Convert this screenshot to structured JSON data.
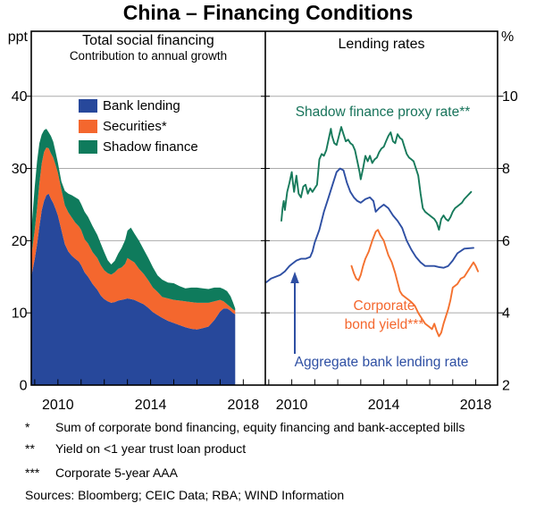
{
  "title": "China – Financing Conditions",
  "footnotes": {
    "items": [
      {
        "marker": "*",
        "text": "Sum of corporate bond financing, equity financing and bank-accepted bills"
      },
      {
        "marker": "**",
        "text": "Yield on <1 year trust loan product"
      },
      {
        "marker": "***",
        "text": "Corporate 5-year AAA"
      }
    ],
    "sources": "Sources: Bloomberg; CEIC Data; RBA; WIND Information"
  },
  "annotations": {
    "shadow_label": "Shadow finance proxy rate**",
    "corporate_label_line1": "Corporate",
    "corporate_label_line2": "bond yield***",
    "aggregate_label": "Aggregate bank lending rate"
  },
  "colors": {
    "bank_lending": "#27489B",
    "securities": "#F4672E",
    "shadow_finance": "#0F7B5C",
    "blue_line": "#2E4FA3",
    "orange_line": "#F4712F",
    "green_line": "#177A5B",
    "gridline": "#ABABAB"
  },
  "chart_data": [
    {
      "type": "area",
      "stacked": true,
      "panel": "left",
      "title": "Total social financing",
      "subtitle": "Contribution to annual growth",
      "unit": "ppt",
      "ylim": [
        0,
        49
      ],
      "yticks": [
        0,
        10,
        20,
        30,
        40
      ],
      "xticks": [
        2010,
        2014,
        2018
      ],
      "x": [
        2008.85,
        2009.0,
        2009.1,
        2009.2,
        2009.3,
        2009.4,
        2009.5,
        2009.6,
        2009.7,
        2009.8,
        2009.9,
        2010.0,
        2010.15,
        2010.3,
        2010.45,
        2010.6,
        2010.75,
        2010.9,
        2011.0,
        2011.15,
        2011.3,
        2011.5,
        2011.7,
        2011.85,
        2012.0,
        2012.15,
        2012.3,
        2012.45,
        2012.6,
        2012.75,
        2012.9,
        2013.0,
        2013.15,
        2013.3,
        2013.5,
        2013.7,
        2013.9,
        2014.1,
        2014.3,
        2014.5,
        2014.75,
        2015.0,
        2015.25,
        2015.5,
        2015.75,
        2016.0,
        2016.25,
        2016.5,
        2016.75,
        2017.0,
        2017.15,
        2017.3,
        2017.45,
        2017.55,
        2017.65
      ],
      "series": [
        {
          "name": "Bank lending",
          "color": "#27489B",
          "values": [
            15.0,
            17.5,
            19.5,
            22.0,
            24.2,
            25.5,
            26.3,
            26.5,
            25.8,
            25.2,
            24.4,
            23.5,
            21.5,
            19.5,
            18.5,
            17.9,
            17.5,
            17.1,
            16.6,
            15.6,
            15.0,
            14.0,
            13.2,
            12.4,
            11.9,
            11.6,
            11.4,
            11.5,
            11.7,
            11.8,
            11.9,
            12.0,
            11.9,
            11.8,
            11.5,
            11.2,
            10.7,
            10.1,
            9.7,
            9.3,
            8.9,
            8.6,
            8.3,
            8.0,
            7.8,
            7.7,
            7.9,
            8.1,
            9.0,
            10.2,
            10.6,
            10.6,
            10.3,
            10.0,
            9.8
          ]
        },
        {
          "name": "Securities*",
          "color": "#F4672E",
          "values": [
            2.8,
            4.0,
            5.0,
            6.0,
            6.5,
            6.8,
            6.6,
            6.3,
            6.3,
            6.3,
            6.1,
            5.9,
            5.6,
            5.4,
            5.4,
            5.3,
            5.0,
            4.9,
            4.9,
            4.6,
            4.6,
            4.4,
            4.4,
            4.2,
            4.0,
            3.9,
            3.9,
            4.1,
            4.4,
            4.5,
            4.9,
            5.6,
            5.4,
            5.2,
            4.6,
            4.2,
            3.8,
            3.4,
            3.2,
            2.9,
            3.1,
            3.2,
            3.4,
            3.6,
            3.7,
            3.7,
            3.5,
            3.3,
            2.6,
            1.6,
            1.0,
            0.6,
            0.5,
            0.5,
            0.5
          ]
        },
        {
          "name": "Shadow finance",
          "color": "#0F7B5C",
          "values": [
            3.5,
            6.0,
            6.5,
            5.5,
            4.0,
            3.0,
            2.6,
            2.2,
            2.4,
            2.2,
            1.8,
            1.4,
            1.1,
            2.0,
            2.6,
            3.1,
            3.5,
            3.7,
            3.6,
            3.8,
            3.7,
            3.6,
            3.2,
            3.0,
            2.5,
            1.8,
            1.4,
            1.6,
            2.1,
            2.7,
            3.3,
            3.8,
            4.5,
            4.0,
            3.9,
            3.4,
            3.1,
            2.8,
            2.3,
            2.4,
            2.2,
            2.3,
            2.0,
            1.8,
            2.0,
            2.1,
            2.0,
            1.9,
            1.9,
            1.7,
            1.7,
            1.8,
            1.5,
            1.0,
            0.3
          ]
        }
      ]
    },
    {
      "type": "line",
      "panel": "right",
      "title": "Lending rates",
      "unit": "%",
      "ylim": [
        2,
        11.8
      ],
      "yticks": [
        2,
        4,
        6,
        8,
        10
      ],
      "xticks": [
        2010,
        2014,
        2018
      ],
      "series": [
        {
          "name": "Shadow finance proxy rate**",
          "color": "#177A5B",
          "x": [
            2009.55,
            2009.6,
            2009.65,
            2009.7,
            2009.8,
            2009.9,
            2010.0,
            2010.05,
            2010.1,
            2010.2,
            2010.3,
            2010.4,
            2010.5,
            2010.6,
            2010.7,
            2010.8,
            2010.9,
            2011.0,
            2011.1,
            2011.2,
            2011.3,
            2011.4,
            2011.5,
            2011.6,
            2011.7,
            2011.75,
            2011.85,
            2011.95,
            2012.05,
            2012.15,
            2012.25,
            2012.35,
            2012.45,
            2012.55,
            2012.65,
            2012.75,
            2012.85,
            2012.95,
            2013.0,
            2013.1,
            2013.2,
            2013.3,
            2013.4,
            2013.5,
            2013.6,
            2013.7,
            2013.8,
            2013.9,
            2014.0,
            2014.1,
            2014.2,
            2014.3,
            2014.4,
            2014.5,
            2014.6,
            2014.7,
            2014.8,
            2014.9,
            2015.0,
            2015.1,
            2015.2,
            2015.3,
            2015.4,
            2015.5,
            2015.6,
            2015.7,
            2015.8,
            2015.9,
            2016.0,
            2016.1,
            2016.2,
            2016.3,
            2016.4,
            2016.5,
            2016.6,
            2016.7,
            2016.8,
            2016.9,
            2017.0,
            2017.1,
            2017.2,
            2017.3,
            2017.4,
            2017.5,
            2017.65,
            2017.8
          ],
          "y": [
            6.55,
            6.9,
            7.1,
            6.85,
            7.35,
            7.6,
            7.9,
            7.6,
            7.35,
            7.8,
            7.3,
            7.2,
            7.5,
            7.55,
            7.3,
            7.45,
            7.35,
            7.45,
            7.55,
            8.25,
            8.4,
            8.35,
            8.5,
            8.8,
            9.1,
            8.9,
            8.7,
            8.65,
            8.9,
            9.15,
            8.95,
            8.75,
            8.8,
            8.7,
            8.65,
            8.5,
            8.2,
            7.9,
            7.7,
            8.0,
            8.35,
            8.2,
            8.35,
            8.15,
            8.25,
            8.3,
            8.45,
            8.55,
            8.6,
            8.75,
            8.9,
            9.0,
            8.75,
            8.7,
            8.95,
            8.85,
            8.8,
            8.6,
            8.4,
            8.3,
            8.25,
            8.2,
            8.0,
            7.8,
            7.3,
            6.9,
            6.8,
            6.75,
            6.7,
            6.65,
            6.6,
            6.5,
            6.3,
            6.6,
            6.7,
            6.6,
            6.55,
            6.65,
            6.8,
            6.9,
            6.95,
            7.0,
            7.05,
            7.15,
            7.25,
            7.35
          ]
        },
        {
          "name": "Corporate bond yield***",
          "color": "#F4712F",
          "x": [
            2012.6,
            2012.7,
            2012.8,
            2012.9,
            2013.0,
            2013.1,
            2013.2,
            2013.35,
            2013.5,
            2013.65,
            2013.75,
            2013.85,
            2014.0,
            2014.1,
            2014.2,
            2014.35,
            2014.5,
            2014.6,
            2014.7,
            2014.8,
            2014.9,
            2015.0,
            2015.1,
            2015.2,
            2015.35,
            2015.5,
            2015.65,
            2015.8,
            2015.9,
            2016.0,
            2016.1,
            2016.2,
            2016.3,
            2016.4,
            2016.5,
            2016.6,
            2016.7,
            2016.8,
            2016.9,
            2017.0,
            2017.1,
            2017.2,
            2017.35,
            2017.5,
            2017.7,
            2017.9,
            2018.0,
            2018.1
          ],
          "y": [
            5.3,
            5.1,
            4.95,
            4.9,
            5.05,
            5.3,
            5.5,
            5.7,
            6.0,
            6.25,
            6.3,
            6.15,
            6.0,
            5.8,
            5.6,
            5.4,
            5.1,
            4.85,
            4.6,
            4.5,
            4.45,
            4.4,
            4.35,
            4.3,
            4.2,
            4.0,
            3.85,
            3.7,
            3.65,
            3.6,
            3.55,
            3.7,
            3.5,
            3.35,
            3.45,
            3.7,
            3.9,
            4.1,
            4.35,
            4.7,
            4.75,
            4.8,
            4.95,
            5.0,
            5.2,
            5.4,
            5.3,
            5.15
          ]
        },
        {
          "name": "Aggregate bank lending rate",
          "color": "#2E4FA3",
          "x": [
            2008.9,
            2009.1,
            2009.3,
            2009.5,
            2009.7,
            2009.9,
            2010.0,
            2010.2,
            2010.4,
            2010.6,
            2010.8,
            2010.9,
            2011.0,
            2011.2,
            2011.4,
            2011.6,
            2011.8,
            2011.95,
            2012.1,
            2012.25,
            2012.4,
            2012.55,
            2012.7,
            2012.85,
            2013.0,
            2013.2,
            2013.4,
            2013.55,
            2013.65,
            2013.8,
            2014.0,
            2014.2,
            2014.4,
            2014.6,
            2014.8,
            2015.0,
            2015.2,
            2015.4,
            2015.6,
            2015.8,
            2016.0,
            2016.2,
            2016.4,
            2016.6,
            2016.8,
            2017.0,
            2017.2,
            2017.5,
            2017.9
          ],
          "y": [
            4.85,
            4.95,
            5.0,
            5.05,
            5.15,
            5.3,
            5.35,
            5.45,
            5.5,
            5.5,
            5.55,
            5.7,
            5.95,
            6.3,
            6.8,
            7.2,
            7.6,
            7.9,
            8.0,
            7.95,
            7.6,
            7.35,
            7.2,
            7.1,
            7.05,
            7.15,
            7.2,
            7.1,
            6.8,
            6.9,
            7.0,
            6.9,
            6.7,
            6.55,
            6.35,
            6.0,
            5.75,
            5.55,
            5.4,
            5.3,
            5.3,
            5.3,
            5.27,
            5.25,
            5.3,
            5.45,
            5.65,
            5.78,
            5.8
          ]
        }
      ]
    }
  ]
}
